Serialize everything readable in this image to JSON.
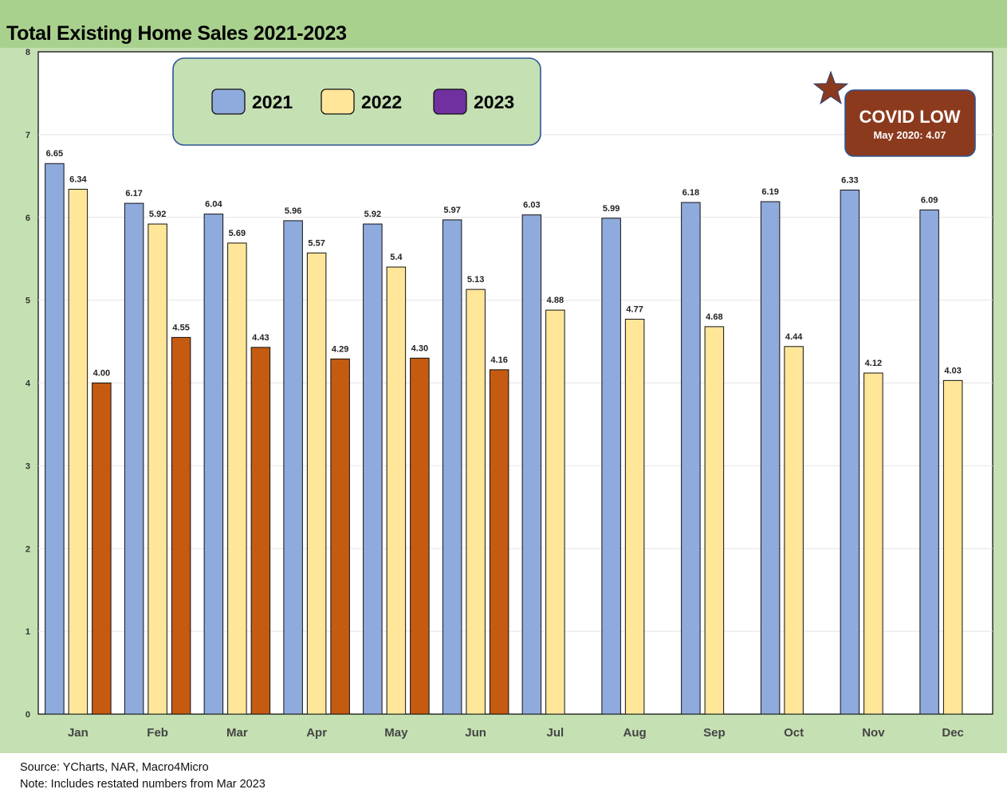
{
  "chart_data": {
    "type": "bar",
    "title": "Total Existing Home Sales 2021-2023",
    "categories": [
      "Jan",
      "Feb",
      "Mar",
      "Apr",
      "May",
      "Jun",
      "Jul",
      "Aug",
      "Sep",
      "Oct",
      "Nov",
      "Dec"
    ],
    "series": [
      {
        "name": "2021",
        "color": "#8faadc",
        "values": [
          6.65,
          6.17,
          6.04,
          5.96,
          5.92,
          5.97,
          6.03,
          5.99,
          6.18,
          6.19,
          6.33,
          6.09
        ],
        "labels": [
          "6.65",
          "6.17",
          "6.04",
          "5.96",
          "5.92",
          "5.97",
          "6.03",
          "5.99",
          "6.18",
          "6.19",
          "6.33",
          "6.09"
        ]
      },
      {
        "name": "2022",
        "color": "#ffe699",
        "values": [
          6.34,
          5.92,
          5.69,
          5.57,
          5.4,
          5.13,
          4.88,
          4.77,
          4.68,
          4.44,
          4.12,
          4.03
        ],
        "labels": [
          "6.34",
          "5.92",
          "5.69",
          "5.57",
          "5.4",
          "5.13",
          "4.88",
          "4.77",
          "4.68",
          "4.44",
          "4.12",
          "4.03"
        ]
      },
      {
        "name": "2023",
        "color": "#c55a11",
        "legend_color": "#7030a0",
        "values": [
          4.0,
          4.55,
          4.43,
          4.29,
          4.3,
          4.16,
          null,
          null,
          null,
          null,
          null,
          null
        ],
        "labels": [
          "4.00",
          "4.55",
          "4.43",
          "4.29",
          "4.30",
          "4.16",
          "",
          "",
          "",
          "",
          "",
          ""
        ]
      }
    ],
    "ylim": [
      0,
      8
    ],
    "yticks": [
      "0",
      "1",
      "2",
      "3",
      "4",
      "5",
      "6",
      "7",
      "8"
    ],
    "xlabel": "",
    "ylabel": "",
    "legend_position": "top-left",
    "grid": true,
    "annotation": {
      "title": "COVID LOW",
      "subtitle": "May 2020: 4.07",
      "color": "#8b3a1e",
      "star_color": "#8b3a1e"
    }
  },
  "footer": {
    "source": "Source: YCharts, NAR, Macro4Micro",
    "note": "Note: Includes restated numbers from Mar 2023"
  }
}
